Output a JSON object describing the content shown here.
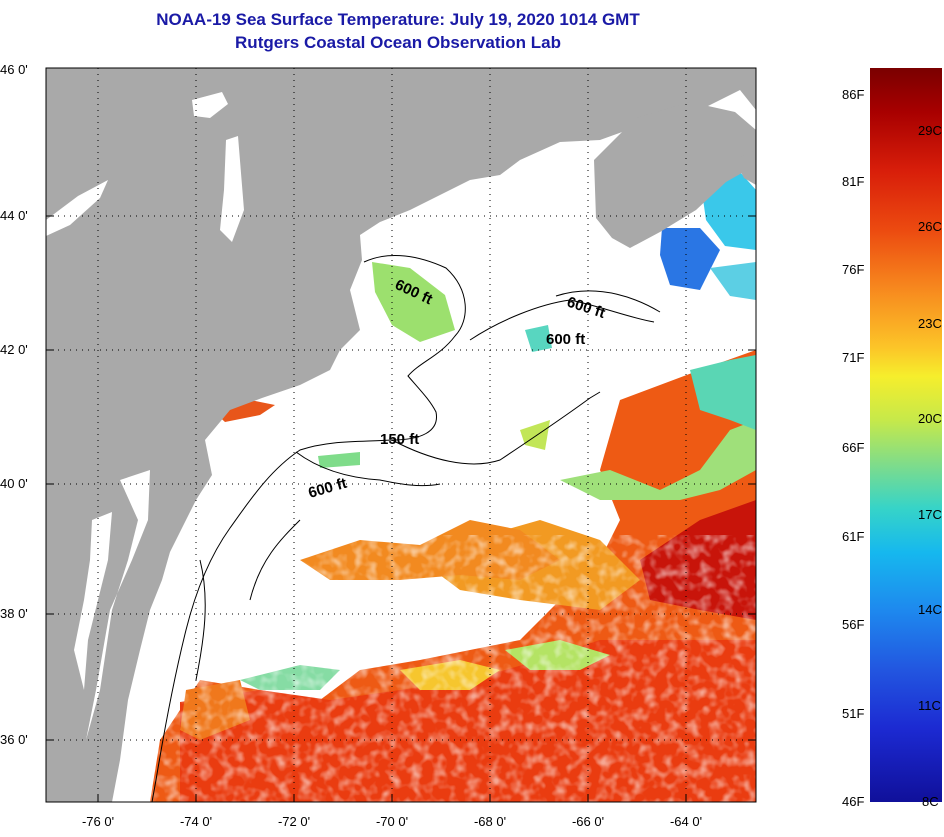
{
  "title": {
    "line1": "NOAA-19 Sea Surface Temperature:  July 19, 2020 1014 GMT",
    "line2": "Rutgers Coastal Ocean Observation Lab"
  },
  "map": {
    "lat_labels": [
      "46 0'",
      "44 0'",
      "42 0'",
      "40 0'",
      "38 0'",
      "36 0'"
    ],
    "lon_labels": [
      "-76 0'",
      "-74 0'",
      "-72 0'",
      "-70 0'",
      "-68 0'",
      "-66 0'",
      "-64 0'"
    ],
    "isobath_labels": [
      {
        "id": "gom-600",
        "text": "600 ft"
      },
      {
        "id": "georges-600-a",
        "text": "600 ft"
      },
      {
        "id": "georges-600-b",
        "text": "600 ft"
      },
      {
        "id": "shelf-150",
        "text": "150 ft"
      },
      {
        "id": "shelf-600",
        "text": "600 ft"
      }
    ]
  },
  "colorbar": {
    "fahrenheit_labels": [
      "86F",
      "81F",
      "76F",
      "71F",
      "66F",
      "61F",
      "56F",
      "51F",
      "46F"
    ],
    "celsius_labels": [
      "29C",
      "26C",
      "23C",
      "20C",
      "17C",
      "14C",
      "11C",
      "8C"
    ],
    "min_celsius": 8,
    "max_celsius": 30
  },
  "colors": {
    "land": "#a9a9a9",
    "title": "#1a1aa6",
    "warm": "#e83c12",
    "cool": "#2cc8e8"
  }
}
